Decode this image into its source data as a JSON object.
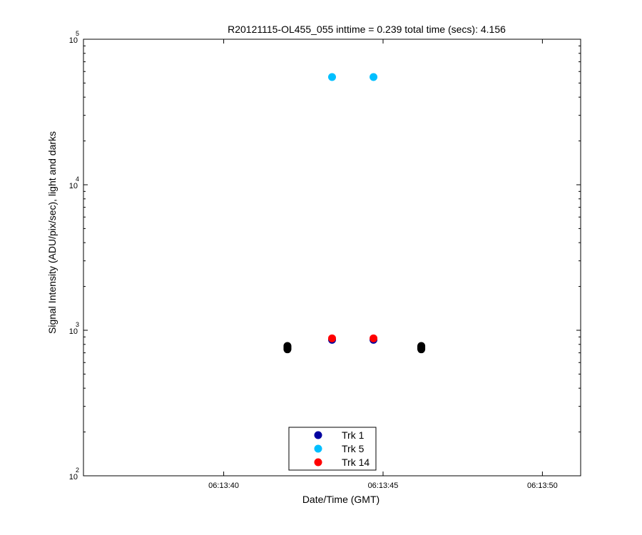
{
  "chart_data": {
    "type": "scatter",
    "title": "R20121115-OL455_055 inttime = 0.239 total time (secs): 4.156",
    "xlabel": "Date/Time (GMT)",
    "ylabel": "Signal Intensity (ADU/pix/sec), light and darks",
    "y_scale": "log",
    "ylim": [
      100,
      100000
    ],
    "xlim": [
      "06:13:35.6",
      "06:13:51.2"
    ],
    "x_ticks": [
      "06:13:40",
      "06:13:45",
      "06:13:50"
    ],
    "y_ticks": [
      {
        "base": "10",
        "exp": "2",
        "value": 100
      },
      {
        "base": "10",
        "exp": "3",
        "value": 1000
      },
      {
        "base": "10",
        "exp": "4",
        "value": 10000
      },
      {
        "base": "10",
        "exp": "5",
        "value": 100000
      }
    ],
    "grid": false,
    "legend_position": "bottom-center",
    "series": [
      {
        "name": "Trk 1",
        "color": "#0000a0",
        "points": [
          {
            "x": "06:13:43.4",
            "y": 860
          },
          {
            "x": "06:13:44.7",
            "y": 860
          }
        ]
      },
      {
        "name": "Trk 5",
        "color": "#00bfff",
        "points": [
          {
            "x": "06:13:43.4",
            "y": 55000
          },
          {
            "x": "06:13:44.7",
            "y": 55000
          }
        ]
      },
      {
        "name": "Trk 14",
        "color": "#ff0000",
        "points": [
          {
            "x": "06:13:43.4",
            "y": 880
          },
          {
            "x": "06:13:44.7",
            "y": 880
          }
        ]
      }
    ],
    "darks": {
      "color": "#000000",
      "points": [
        {
          "x": "06:13:42.0",
          "y": 740
        },
        {
          "x": "06:13:42.0",
          "y": 750
        },
        {
          "x": "06:13:42.0",
          "y": 760
        },
        {
          "x": "06:13:42.0",
          "y": 770
        },
        {
          "x": "06:13:42.0",
          "y": 780
        },
        {
          "x": "06:13:46.2",
          "y": 740
        },
        {
          "x": "06:13:46.2",
          "y": 750
        },
        {
          "x": "06:13:46.2",
          "y": 760
        },
        {
          "x": "06:13:46.2",
          "y": 770
        },
        {
          "x": "06:13:46.2",
          "y": 780
        }
      ]
    }
  }
}
